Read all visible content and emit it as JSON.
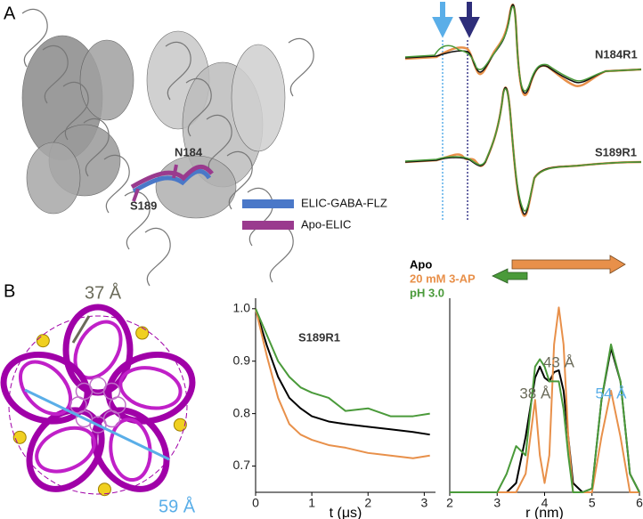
{
  "panel_labels": [
    "A",
    "B"
  ],
  "panel_a": {
    "residue_labels": [
      "N184",
      "S189"
    ],
    "legend": [
      {
        "name": "ELIC-GABA-FLZ",
        "color": "#4a78c8"
      },
      {
        "name": "Apo-ELIC",
        "color": "#9a3a8e"
      }
    ],
    "spectra_labels": [
      "N184R1",
      "S189R1"
    ]
  },
  "panel_b": {
    "distance_annotations": [
      {
        "text": "37 Å",
        "color": "#6b6b5a"
      },
      {
        "text": "59 Å",
        "color": "#5aaee8"
      }
    ]
  },
  "chart_data": [
    {
      "type": "line",
      "label": "S189R1",
      "x_label": "t (μs)",
      "x": [
        0,
        0.2,
        0.4,
        0.6,
        0.8,
        1.0,
        1.3,
        1.6,
        2.0,
        2.4,
        2.8,
        3.1
      ],
      "series": [
        {
          "name": "Apo",
          "color": "#000000",
          "values": [
            1.0,
            0.93,
            0.87,
            0.83,
            0.81,
            0.795,
            0.785,
            0.78,
            0.775,
            0.77,
            0.765,
            0.76
          ]
        },
        {
          "name": "20 mM 3-AP",
          "color": "#e8904a",
          "values": [
            1.0,
            0.91,
            0.83,
            0.78,
            0.76,
            0.75,
            0.74,
            0.735,
            0.725,
            0.72,
            0.715,
            0.72
          ]
        },
        {
          "name": "pH 3.0",
          "color": "#4a9a3a",
          "values": [
            1.0,
            0.95,
            0.9,
            0.87,
            0.85,
            0.84,
            0.83,
            0.805,
            0.81,
            0.795,
            0.795,
            0.8
          ]
        }
      ],
      "xlim": [
        0,
        3.2
      ],
      "ylim": [
        0.65,
        1.02
      ],
      "xticks": [
        0,
        1,
        2,
        3
      ],
      "yticks": [
        0.7,
        0.8,
        0.9,
        {
          "value": 1,
          "label": "1.0"
        }
      ]
    },
    {
      "type": "line",
      "x_label": "r (nm)",
      "x": [
        2.0,
        2.5,
        3.0,
        3.2,
        3.4,
        3.6,
        3.8,
        3.9,
        4.0,
        4.1,
        4.2,
        4.3,
        4.4,
        4.5,
        4.6,
        4.8,
        5.0,
        5.2,
        5.4,
        5.6,
        5.8,
        6.0
      ],
      "series": [
        {
          "color": "#000000",
          "values": [
            0,
            0,
            0,
            0,
            0.05,
            0.3,
            0.62,
            0.68,
            0.62,
            0.6,
            0.65,
            0.66,
            0.55,
            0.3,
            0.05,
            0,
            0.02,
            0.5,
            0.78,
            0.6,
            0.1,
            0
          ]
        },
        {
          "color": "#e8904a",
          "values": [
            0,
            0,
            0,
            0,
            0,
            0.1,
            0.5,
            0.2,
            0.05,
            0.2,
            0.8,
            1.0,
            0.8,
            0.3,
            0,
            0,
            0,
            0.3,
            0.55,
            0.3,
            0,
            0
          ]
        },
        {
          "color": "#4a9a3a",
          "values": [
            0,
            0,
            0,
            0.1,
            0.25,
            0.2,
            0.68,
            0.72,
            0.68,
            0.6,
            0.6,
            0.6,
            0.45,
            0.2,
            0,
            0,
            0.02,
            0.5,
            0.8,
            0.6,
            0.1,
            0
          ]
        }
      ],
      "annotations": [
        {
          "text": "38 Å",
          "x": 3.8,
          "color": "#6b6b5a"
        },
        {
          "text": "43 Å",
          "x": 4.3,
          "color": "#6b6b5a"
        },
        {
          "text": "54 Å",
          "x": 5.4,
          "color": "#5aaee8"
        }
      ],
      "xlim": [
        2,
        6
      ],
      "ylim": [
        0,
        1.05
      ],
      "xticks": [
        2,
        3,
        4,
        5,
        6
      ]
    }
  ]
}
